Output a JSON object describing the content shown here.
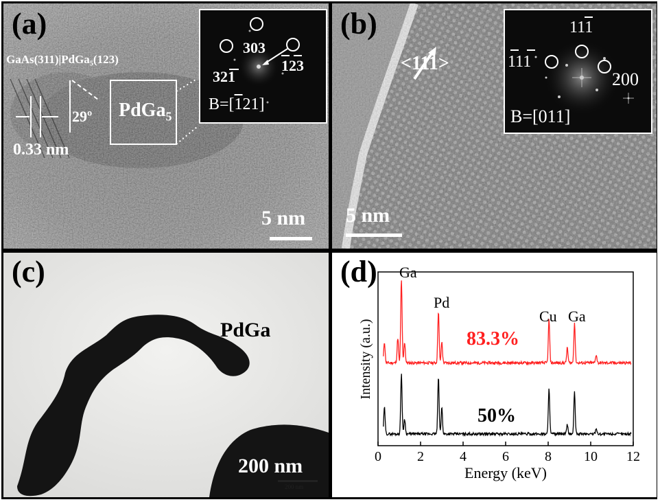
{
  "panels": {
    "a": {
      "label": "(a)",
      "interface": "GaAs(311)|PdGa₅(123)",
      "angle": "29º",
      "spacing": "0.33 nm",
      "phase_main": "PdGa",
      "phase_sub": "5",
      "scale": "5 nm",
      "inset": {
        "spot_1": "303",
        "spot_2a": "32",
        "spot_2b": "1",
        "spot_3": "123",
        "zone_prefix": "B=[",
        "zone_bar": "1",
        "zone_rest": "21]"
      }
    },
    "b": {
      "label": "(b)",
      "direction": "<111>",
      "scale": "5 nm",
      "inset": {
        "spot_top_a": "11",
        "spot_top_b": "1",
        "spot_left": "111",
        "spot_right": "200",
        "zone": "B=[011]"
      }
    },
    "c": {
      "label": "(c)",
      "phase": "PdGa",
      "scale": "200 nm",
      "scale_small": "200 nm"
    },
    "d": {
      "label": "(d)",
      "peak_ga": "Ga",
      "peak_pd": "Pd",
      "peak_cu": "Cu",
      "peak_ga2": "Ga",
      "red_label": "83.3%",
      "black_label": "50%"
    }
  },
  "chart_data": {
    "type": "line",
    "xlabel": "Energy (keV)",
    "ylabel": "Intensity (a.u.)",
    "xlim": [
      0,
      12
    ],
    "x_ticks": [
      "0",
      "2",
      "4",
      "6",
      "8",
      "10",
      "12"
    ],
    "series": [
      {
        "name": "83.3%",
        "color": "#ff2020",
        "peaks": [
          [
            0.3,
            0.25
          ],
          [
            0.93,
            0.3
          ],
          [
            1.1,
            1.0
          ],
          [
            1.25,
            0.25
          ],
          [
            2.84,
            0.62
          ],
          [
            3.0,
            0.25
          ],
          [
            8.04,
            0.52
          ],
          [
            8.9,
            0.18
          ],
          [
            9.24,
            0.48
          ],
          [
            10.26,
            0.1
          ]
        ]
      },
      {
        "name": "50%",
        "color": "#000000",
        "peaks": [
          [
            0.3,
            0.35
          ],
          [
            1.1,
            0.8
          ],
          [
            1.25,
            0.2
          ],
          [
            2.84,
            0.75
          ],
          [
            3.0,
            0.35
          ],
          [
            8.04,
            0.62
          ],
          [
            8.9,
            0.12
          ],
          [
            9.24,
            0.55
          ],
          [
            10.26,
            0.08
          ]
        ]
      }
    ]
  }
}
